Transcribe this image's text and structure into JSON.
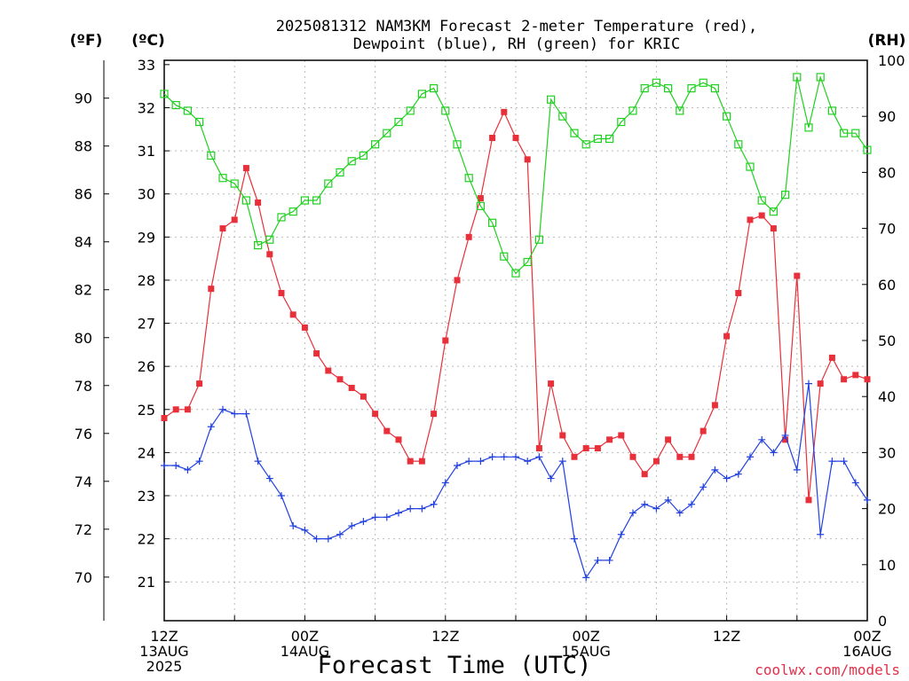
{
  "chart_data": {
    "type": "line",
    "title_lines": [
      "2025081312 NAM3KM Forecast 2-meter Temperature (red),",
      "Dewpoint (blue), RH (green) for KRIC"
    ],
    "xlabel": "Forecast Time (UTC)",
    "credit": "coolwx.com/models",
    "axis_units": {
      "fahrenheit": "(ºF)",
      "celsius": "(ºC)",
      "rh": "(RH)"
    },
    "x_tick_labels": [
      {
        "hour": 0,
        "lines": [
          "12Z",
          "13AUG",
          "2025"
        ]
      },
      {
        "hour": 12,
        "lines": [
          "00Z",
          "14AUG"
        ]
      },
      {
        "hour": 24,
        "lines": [
          "12Z"
        ]
      },
      {
        "hour": 36,
        "lines": [
          "00Z",
          "15AUG"
        ]
      },
      {
        "hour": 48,
        "lines": [
          "12Z"
        ]
      },
      {
        "hour": 60,
        "lines": [
          "00Z",
          "16AUG"
        ]
      }
    ],
    "xlim": [
      0,
      60
    ],
    "celsius_ticks": [
      21,
      22,
      23,
      24,
      25,
      26,
      27,
      28,
      29,
      30,
      31,
      32,
      33
    ],
    "fahrenheit_ticks": [
      70,
      72,
      74,
      76,
      78,
      80,
      82,
      84,
      86,
      88,
      90
    ],
    "rh_ticks": [
      0,
      10,
      20,
      30,
      40,
      50,
      60,
      70,
      80,
      90,
      100
    ],
    "celsius_range": [
      20.1,
      33.1
    ],
    "rh_range": [
      0,
      100
    ],
    "grid": true,
    "colors": {
      "temperature": "#e8303a",
      "dewpoint": "#2040e0",
      "rh": "#20d020",
      "grid": "#bbbbbb"
    },
    "series": [
      {
        "name": "2-meter Temperature (red)",
        "unit": "C",
        "x": [
          0,
          1,
          2,
          3,
          4,
          5,
          6,
          7,
          8,
          9,
          10,
          11,
          12,
          13,
          14,
          15,
          16,
          17,
          18,
          19,
          20,
          21,
          22,
          23,
          24,
          25,
          26,
          27,
          28,
          29,
          30,
          31,
          32,
          33,
          34,
          35,
          36,
          37,
          38,
          39,
          40,
          41,
          42,
          43,
          44,
          45,
          46,
          47,
          48,
          49,
          50,
          51,
          52,
          53,
          54,
          55,
          56,
          57,
          58,
          59,
          60
        ],
        "values": [
          24.8,
          25.0,
          25.0,
          25.6,
          27.8,
          29.2,
          29.4,
          30.6,
          29.8,
          28.6,
          27.7,
          27.2,
          26.9,
          26.3,
          25.9,
          25.7,
          25.5,
          25.3,
          24.9,
          24.5,
          24.3,
          23.8,
          23.8,
          24.9,
          26.6,
          28.0,
          29.0,
          29.9,
          31.3,
          31.9,
          31.3,
          30.8,
          24.1,
          25.6,
          24.4,
          23.9,
          24.1,
          24.1,
          24.3,
          24.4,
          23.9,
          23.5,
          23.8,
          24.3,
          23.9,
          23.9,
          24.5,
          25.1,
          26.7,
          27.7,
          29.4,
          29.5,
          29.2,
          24.3,
          28.1,
          22.9,
          25.6,
          26.2,
          25.7,
          25.8,
          25.7
        ]
      },
      {
        "name": "Dewpoint (blue)",
        "unit": "C",
        "x": [
          0,
          1,
          2,
          3,
          4,
          5,
          6,
          7,
          8,
          9,
          10,
          11,
          12,
          13,
          14,
          15,
          16,
          17,
          18,
          19,
          20,
          21,
          22,
          23,
          24,
          25,
          26,
          27,
          28,
          29,
          30,
          31,
          32,
          33,
          34,
          35,
          36,
          37,
          38,
          39,
          40,
          41,
          42,
          43,
          44,
          45,
          46,
          47,
          48,
          49,
          50,
          51,
          52,
          53,
          54,
          55,
          56,
          57,
          58,
          59,
          60
        ],
        "values": [
          23.7,
          23.7,
          23.6,
          23.8,
          24.6,
          25.0,
          24.9,
          24.9,
          23.8,
          23.4,
          23.0,
          22.3,
          22.2,
          22.0,
          22.0,
          22.1,
          22.3,
          22.4,
          22.5,
          22.5,
          22.6,
          22.7,
          22.7,
          22.8,
          23.3,
          23.7,
          23.8,
          23.8,
          23.9,
          23.9,
          23.9,
          23.8,
          23.9,
          23.4,
          23.8,
          22.0,
          21.1,
          21.5,
          21.5,
          22.1,
          22.6,
          22.8,
          22.7,
          22.9,
          22.6,
          22.8,
          23.2,
          23.6,
          23.4,
          23.5,
          23.9,
          24.3,
          24.0,
          24.4,
          23.6,
          25.6,
          22.1,
          23.8,
          23.8,
          23.3,
          22.9
        ]
      },
      {
        "name": "RH (green)",
        "unit": "%",
        "x": [
          0,
          1,
          2,
          3,
          4,
          5,
          6,
          7,
          8,
          9,
          10,
          11,
          12,
          13,
          14,
          15,
          16,
          17,
          18,
          19,
          20,
          21,
          22,
          23,
          24,
          25,
          26,
          27,
          28,
          29,
          30,
          31,
          32,
          33,
          34,
          35,
          36,
          37,
          38,
          39,
          40,
          41,
          42,
          43,
          44,
          45,
          46,
          47,
          48,
          49,
          50,
          51,
          52,
          53,
          54,
          55,
          56,
          57,
          58,
          59,
          60
        ],
        "values": [
          94,
          92,
          91,
          89,
          83,
          79,
          78,
          75,
          67,
          68,
          72,
          73,
          75,
          75,
          78,
          80,
          82,
          83,
          85,
          87,
          89,
          91,
          94,
          95,
          91,
          85,
          79,
          74,
          71,
          65,
          62,
          64,
          68,
          93,
          90,
          87,
          85,
          86,
          86,
          89,
          91,
          95,
          96,
          95,
          91,
          95,
          96,
          95,
          90,
          85,
          81,
          75,
          73,
          76,
          97,
          88,
          97,
          91,
          87,
          87,
          84
        ]
      }
    ]
  }
}
